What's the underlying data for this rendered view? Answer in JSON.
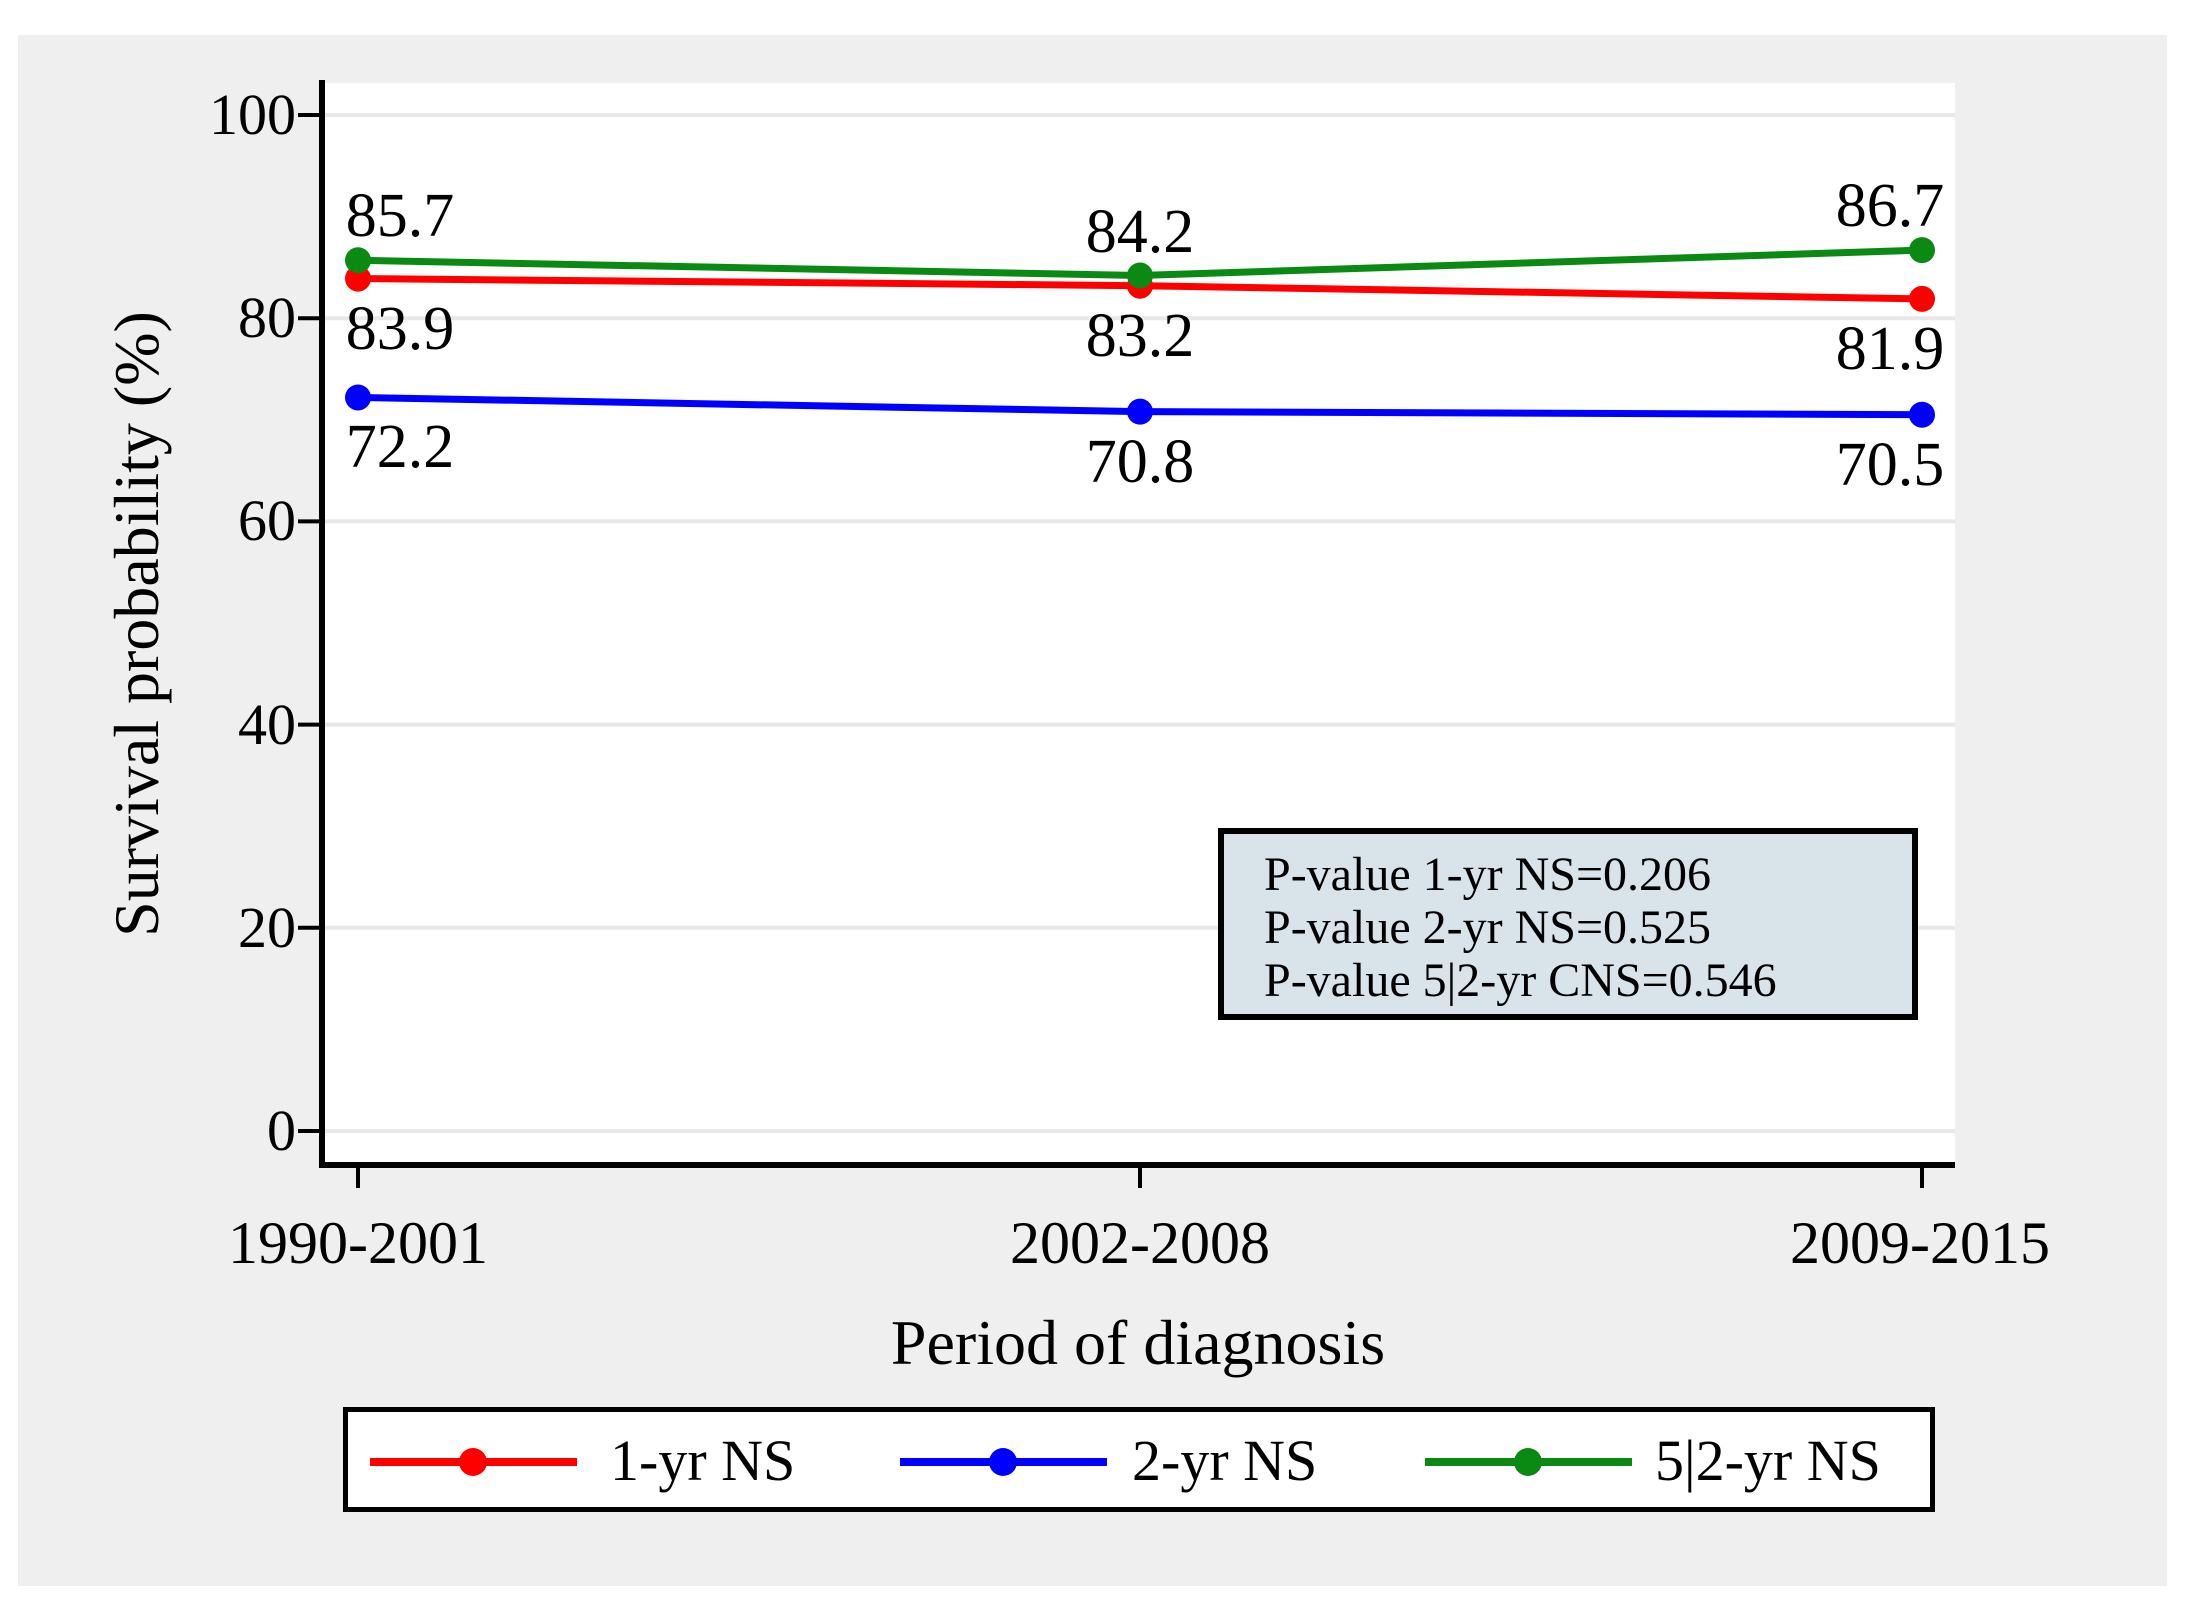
{
  "figure": {
    "background": "#ffffff",
    "region_background": "#efefef",
    "gridline_color": "#e8e8e8"
  },
  "chart_data": {
    "type": "line",
    "title": "",
    "xlabel": "Period of diagnosis",
    "ylabel": "Survival probability (%)",
    "categories": [
      "1990-2001",
      "2002-2008",
      "2009-2015"
    ],
    "y_ticks": [
      0,
      20,
      40,
      60,
      80,
      100
    ],
    "ylim": [
      0,
      100
    ],
    "grid": true,
    "legend_position": "bottom",
    "series": [
      {
        "name": "1-yr NS",
        "color": "#ff0000",
        "values": [
          83.9,
          83.2,
          81.9
        ],
        "labels": [
          "83.9",
          "83.2",
          "81.9"
        ],
        "label_position": "below"
      },
      {
        "name": "2-yr NS",
        "color": "#0000ff",
        "values": [
          72.2,
          70.8,
          70.5
        ],
        "labels": [
          "72.2",
          "70.8",
          "70.5"
        ],
        "label_position": "below"
      },
      {
        "name": "5|2-yr NS",
        "color": "#0a8a12",
        "values": [
          85.7,
          84.2,
          86.7
        ],
        "labels": [
          "85.7",
          "84.2",
          "86.7"
        ],
        "label_position": "above"
      }
    ],
    "annotation_box": {
      "background": "#d8e4ea",
      "lines": [
        "P-value 1-yr NS=0.206",
        "P-value 2-yr NS=0.525",
        "P-value 5|2-yr CNS=0.546"
      ]
    }
  }
}
